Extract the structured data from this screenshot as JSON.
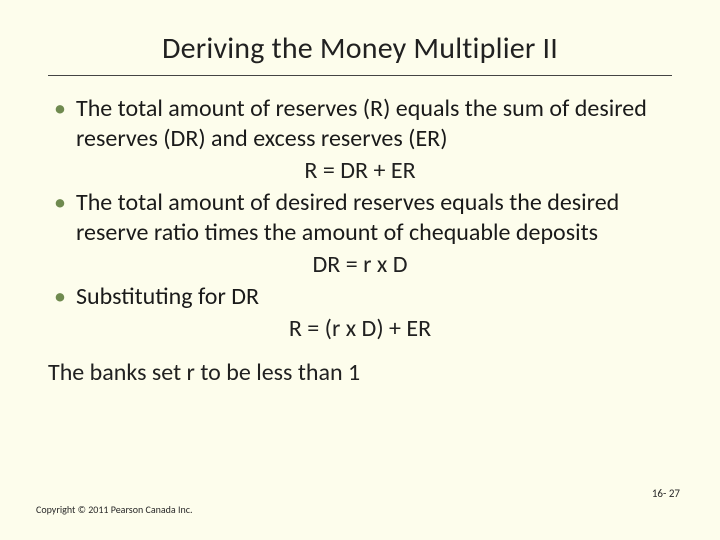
{
  "background_color": "#fdfdec",
  "bullet_color": "#6f8a4f",
  "text_color": "#212121",
  "title": "Deriving the Money Multiplier II",
  "title_fontsize": 30,
  "body_fontsize": 24,
  "bullets": [
    {
      "text": "The total amount of reserves (R) equals the sum of desired reserves (DR) and excess reserves (ER)",
      "equation": "R = DR + ER"
    },
    {
      "text": "The total amount of desired reserves equals the desired reserve ratio times the amount of chequable deposits",
      "equation": "DR = r x D"
    },
    {
      "text": "Substituting for DR",
      "equation": "R = (r x D) + ER"
    }
  ],
  "closing_line": "The banks set r to be less than 1",
  "copyright": "Copyright © 2011 Pearson Canada Inc.",
  "page_number": "16- 27"
}
